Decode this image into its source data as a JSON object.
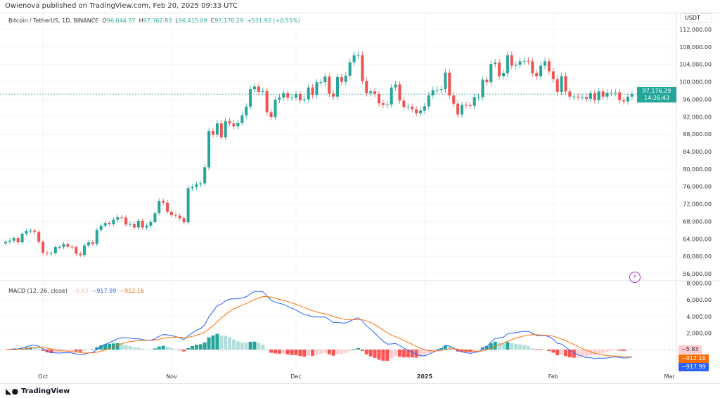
{
  "header": {
    "published": "Owienova published on TradingView.com, Feb 20, 2025 09:33 UTC"
  },
  "legend": {
    "symbol": "Bitcoin / TetherUS, 1D, BINANCE",
    "o_label": "O",
    "o": "96,644.37",
    "h_label": "H",
    "h": "97,362.83",
    "l_label": "L",
    "l": "96,415.09",
    "c_label": "C",
    "c": "97,176.29",
    "change": "+531.92 (+0.55%)"
  },
  "price_axis": {
    "currency": "USDT",
    "ticks": [
      56000,
      60000,
      64000,
      68000,
      72000,
      76000,
      80000,
      84000,
      88000,
      92000,
      96000,
      100000,
      104000,
      108000,
      112000
    ],
    "tick_labels": [
      "56,000.00",
      "60,000.00",
      "64,000.00",
      "68,000.00",
      "72,000.00",
      "76,000.00",
      "80,000.00",
      "84,000.00",
      "88,000.00",
      "92,000.00",
      "96,000.00",
      "100,000.00",
      "104,000.00",
      "108,000.00",
      "112,000.00"
    ],
    "last_price": "97,176.29",
    "countdown": "14:26:43"
  },
  "macd": {
    "title": "MACD (12, 26, close)",
    "hist": "−5.83",
    "macd": "−917.99",
    "signal": "−912.16",
    "ticks": [
      2000,
      4000,
      6000,
      8000
    ],
    "tick_labels": [
      "2,000.00",
      "4,000.00",
      "6,000.00",
      "8,000.00"
    ]
  },
  "time_axis": {
    "labels": [
      "Oct",
      "Nov",
      "Dec",
      "2025",
      "Feb",
      "Mar"
    ],
    "day_index": [
      9,
      40,
      70,
      101,
      132,
      160
    ]
  },
  "colors": {
    "up": "#26a69a",
    "down": "#ef5350",
    "macd": "#2962ff",
    "signal": "#ff6d00"
  },
  "footer": {
    "brand": "TradingView"
  },
  "chart_data": {
    "type": "candlestick",
    "x_start": "2024-09-22",
    "interval": "1D",
    "ylim": [
      56000,
      112000
    ],
    "closes": [
      63300,
      63600,
      64200,
      63200,
      65200,
      65800,
      65900,
      65600,
      63300,
      60800,
      60600,
      60700,
      62100,
      62100,
      62800,
      62200,
      62100,
      60600,
      60300,
      62500,
      63200,
      62800,
      66000,
      67000,
      67600,
      67400,
      68400,
      69000,
      68900,
      67300,
      67400,
      66600,
      68100,
      66600,
      67000,
      67900,
      69900,
      72700,
      72300,
      70200,
      69500,
      69300,
      68700,
      67800,
      75600,
      75900,
      76500,
      76700,
      80400,
      88700,
      87900,
      90500,
      87300,
      91000,
      90500,
      89800,
      90600,
      92300,
      94300,
      98300,
      98900,
      97700,
      97900,
      93000,
      91900,
      95900,
      96400,
      97400,
      96400,
      96400,
      97200,
      95800,
      96000,
      98700,
      97000,
      99900,
      99900,
      101200,
      97300,
      96600,
      101100,
      100000,
      101400,
      104500,
      106100,
      106100,
      100200,
      97400,
      97800,
      97200,
      95100,
      94700,
      94800,
      98700,
      99400,
      95700,
      94200,
      94300,
      93700,
      92800,
      93400,
      94400,
      96900,
      98100,
      98200,
      98300,
      102100,
      96900,
      95000,
      92500,
      94700,
      94600,
      94500,
      96500,
      96500,
      100500,
      99900,
      104100,
      104400,
      101300,
      102000,
      106100,
      103700,
      103900,
      104700,
      104800,
      104700,
      102000,
      101300,
      103700,
      104700,
      102400,
      100600,
      97700,
      101300,
      97800,
      96600,
      96600,
      96500,
      96500,
      96100,
      97400,
      95800,
      97800,
      96600,
      97500,
      97500,
      97600,
      95800,
      95500,
      96600,
      97176
    ]
  }
}
